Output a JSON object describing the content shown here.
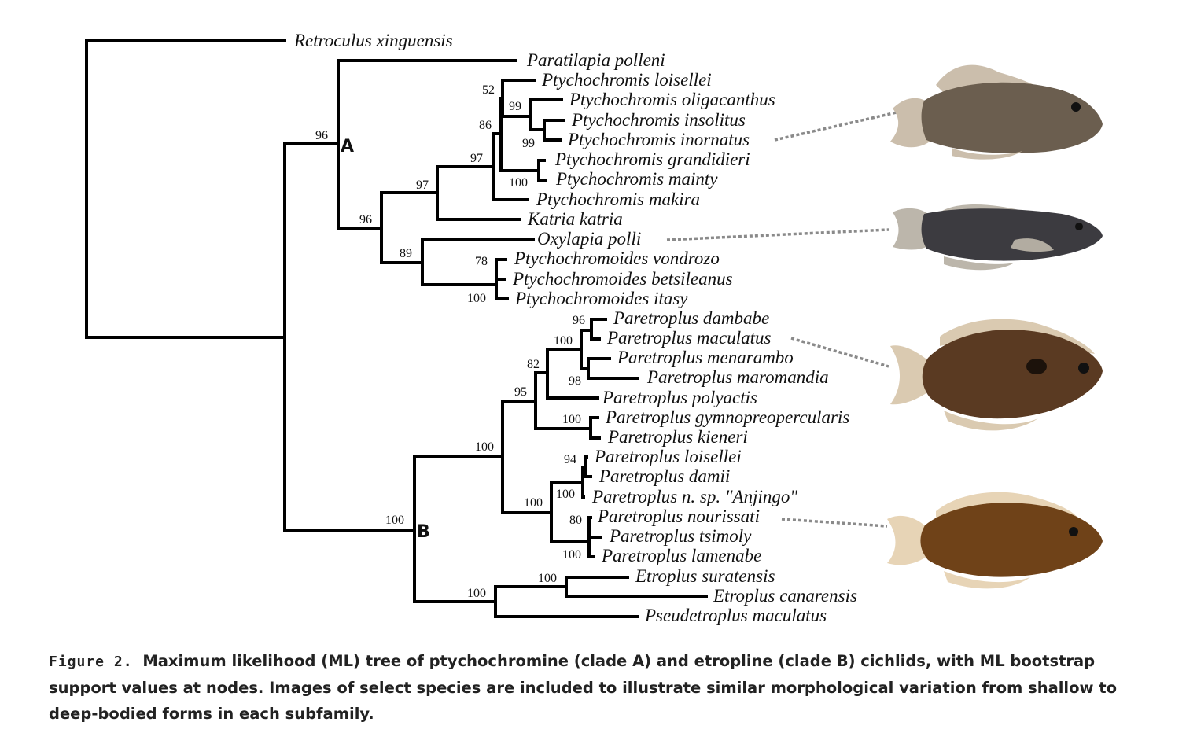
{
  "figure": {
    "label": "Figure 2.",
    "caption": "Maximum likelihood (ML) tree of ptychochromine (clade A) and etropline (clade B) cichlids, with ML bootstrap support values at nodes. Images of select species are included to illustrate similar morphological variation from shallow to deep-bodied forms in each subfamily."
  },
  "clades": {
    "A": "A",
    "B": "B"
  },
  "taxa": [
    "Retroculus xinguensis",
    "Paratilapia polleni",
    "Ptychochromis loisellei",
    "Ptychochromis oligacanthus",
    "Ptychochromis insolitus",
    "Ptychochromis inornatus",
    "Ptychochromis grandidieri",
    "Ptychochromis mainty",
    "Ptychochromis makira",
    "Katria katria",
    "Oxylapia polli",
    "Ptychochromoides vondrozo",
    "Ptychochromoides betsileanus",
    "Ptychochromoides itasy",
    "Paretroplus dambabe",
    "Paretroplus maculatus",
    "Paretroplus menarambo",
    "Paretroplus maromandia",
    "Paretroplus polyactis",
    "Paretroplus gymnopreopercularis",
    "Paretroplus kieneri",
    "Paretroplus loisellei",
    "Paretroplus damii",
    "Paretroplus n. sp. \"Anjingo\"",
    "Paretroplus nourissati",
    "Paretroplus tsimoly",
    "Paretroplus lamenabe",
    "Etroplus suratensis",
    "Etroplus canarensis",
    "Pseudetroplus maculatus"
  ],
  "support": {
    "cladeA": "96",
    "ptychochromis_etc": "96",
    "ptychochromis_katria": "97",
    "ptychochromis": "97",
    "ptycho_core": "86",
    "loisellei_node": "52",
    "oligacanthus_group": "99",
    "insolitus_inornatus": "99",
    "grandidieri_mainty": "100",
    "oxylapia_group": "89",
    "vondrozo_betsileanus": "78",
    "ptychochromoides": "100",
    "cladeB": "100",
    "paretroplus": "100",
    "paretroplus_a": "95",
    "paretroplus_a1": "82",
    "paretroplus_a1a": "100",
    "dambabe_maculatus": "96",
    "menarambo_maromandia": "98",
    "gymno_kieneri": "100",
    "paretroplus_b": "100",
    "loisellei_damii": "94",
    "loisellei_group": "100",
    "nourissati_tsimoly": "80",
    "nourissati_group": "100",
    "etroplus_group": "100",
    "etroplus": "100"
  },
  "fish_images": [
    {
      "species": "Ptychochromis inornatus",
      "body": "#6b5e4f",
      "fin": "#c8bba8"
    },
    {
      "species": "Oxylapia polli",
      "body": "#3c3b40",
      "fin": "#b8b2a6"
    },
    {
      "species": "Paretroplus maculatus",
      "body": "#5a3a22",
      "fin": "#d8c7ad"
    },
    {
      "species": "Paretroplus nourissati",
      "body": "#6f4218",
      "fin": "#e6d2b2"
    }
  ]
}
